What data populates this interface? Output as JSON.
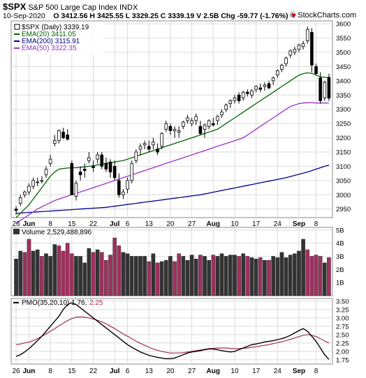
{
  "header": {
    "symbol": "$SPX",
    "name": "S&P 500 Large Cap Index",
    "exchange": "INDX",
    "date": "10-Sep-2020",
    "open": "O 3412.56",
    "high": "H 3425.55",
    "low": "L 3329.25",
    "close": "C 3339.19",
    "volume": "V 2.5B",
    "chg": "Chg -59.77 (-1.76%)",
    "chg_arrow": "▼",
    "brand": "© StockCharts.com"
  },
  "colors": {
    "up_candle": "#ffffff",
    "down_candle": "#000000",
    "ema20": "#006400",
    "ema200": "#00008b",
    "ema50": "#9932cc",
    "vol_up": "#333333",
    "vol_down": "#a0305e",
    "pmo": "#000000",
    "pmo_signal": "#a0304f",
    "chg_negative": "#cc0000"
  },
  "chart_data": [
    {
      "type": "candlestick",
      "legend": [
        {
          "key": "price",
          "label": "$SPX (Daily) 3339.19"
        },
        {
          "key": "ema20",
          "label": "EMA(20) 3411.05"
        },
        {
          "key": "ema200",
          "label": "EMA(200) 3115.91"
        },
        {
          "key": "ema50",
          "label": "EMA(50) 3322.35"
        }
      ],
      "legend_position": "top-left",
      "x_ticks": [
        "26",
        "Jun",
        "8",
        "15",
        "22",
        "Jul",
        "6",
        "13",
        "20",
        "27",
        "Aug",
        "10",
        "17",
        "24",
        "Sep",
        "8"
      ],
      "y_ticks": [
        2950,
        3000,
        3050,
        3100,
        3150,
        3200,
        3250,
        3300,
        3350,
        3400,
        3450,
        3500,
        3550,
        3600
      ],
      "ylim": [
        2920,
        3610
      ],
      "grid": true,
      "candles": [
        [
          2950,
          2960,
          2930,
          2945
        ],
        [
          2970,
          3000,
          2960,
          2990
        ],
        [
          3000,
          3015,
          2990,
          3010
        ],
        [
          3010,
          3040,
          3000,
          3030
        ],
        [
          3030,
          3060,
          3020,
          3050
        ],
        [
          3045,
          3060,
          3030,
          3045
        ],
        [
          3050,
          3065,
          3040,
          3050
        ],
        [
          3070,
          3100,
          3060,
          3090
        ],
        [
          3110,
          3140,
          3100,
          3125
        ],
        [
          3180,
          3210,
          3170,
          3190
        ],
        [
          3190,
          3230,
          3180,
          3225
        ],
        [
          3220,
          3235,
          3195,
          3200
        ],
        [
          3210,
          3230,
          3190,
          3195
        ],
        [
          3110,
          3120,
          3000,
          3000
        ],
        [
          2995,
          3050,
          2980,
          3040
        ],
        [
          3080,
          3100,
          3050,
          3070
        ],
        [
          3090,
          3110,
          3060,
          3085
        ],
        [
          3120,
          3150,
          3110,
          3130
        ],
        [
          3100,
          3120,
          3080,
          3095
        ],
        [
          3125,
          3150,
          3110,
          3140
        ],
        [
          3140,
          3150,
          3090,
          3100
        ],
        [
          3110,
          3130,
          3080,
          3090
        ],
        [
          3115,
          3125,
          3060,
          3080
        ],
        [
          3100,
          3120,
          3050,
          3060
        ],
        [
          3050,
          3075,
          2990,
          3000
        ],
        [
          3000,
          3020,
          2985,
          3010
        ],
        [
          3020,
          3060,
          3005,
          3050
        ],
        [
          3050,
          3120,
          3040,
          3110
        ],
        [
          3120,
          3160,
          3110,
          3150
        ],
        [
          3160,
          3180,
          3140,
          3170
        ],
        [
          3175,
          3190,
          3160,
          3180
        ],
        [
          3170,
          3190,
          3150,
          3160
        ],
        [
          3175,
          3200,
          3160,
          3185
        ],
        [
          3160,
          3180,
          3140,
          3150
        ],
        [
          3170,
          3220,
          3160,
          3215
        ],
        [
          3230,
          3260,
          3220,
          3250
        ],
        [
          3240,
          3250,
          3210,
          3225
        ],
        [
          3225,
          3240,
          3200,
          3230
        ],
        [
          3220,
          3240,
          3200,
          3225
        ],
        [
          3240,
          3260,
          3230,
          3255
        ],
        [
          3260,
          3280,
          3250,
          3270
        ],
        [
          3250,
          3270,
          3240,
          3260
        ],
        [
          3260,
          3285,
          3245,
          3275
        ],
        [
          3240,
          3260,
          3210,
          3215
        ],
        [
          3230,
          3250,
          3200,
          3245
        ],
        [
          3240,
          3265,
          3230,
          3260
        ],
        [
          3250,
          3270,
          3240,
          3245
        ],
        [
          3260,
          3280,
          3245,
          3275
        ],
        [
          3280,
          3300,
          3270,
          3290
        ],
        [
          3300,
          3320,
          3290,
          3315
        ],
        [
          3320,
          3335,
          3305,
          3330
        ],
        [
          3330,
          3350,
          3320,
          3340
        ],
        [
          3350,
          3360,
          3320,
          3330
        ],
        [
          3340,
          3365,
          3330,
          3360
        ],
        [
          3360,
          3370,
          3345,
          3355
        ],
        [
          3350,
          3370,
          3340,
          3365
        ],
        [
          3370,
          3385,
          3360,
          3380
        ],
        [
          3375,
          3390,
          3360,
          3370
        ],
        [
          3380,
          3395,
          3365,
          3385
        ],
        [
          3390,
          3400,
          3370,
          3375
        ],
        [
          3400,
          3415,
          3385,
          3410
        ],
        [
          3420,
          3440,
          3410,
          3435
        ],
        [
          3440,
          3460,
          3430,
          3455
        ],
        [
          3460,
          3485,
          3450,
          3480
        ],
        [
          3490,
          3510,
          3480,
          3505
        ],
        [
          3500,
          3520,
          3490,
          3510
        ],
        [
          3510,
          3530,
          3500,
          3525
        ],
        [
          3520,
          3540,
          3510,
          3530
        ],
        [
          3540,
          3590,
          3530,
          3580
        ],
        [
          3570,
          3585,
          3430,
          3455
        ],
        [
          3450,
          3460,
          3420,
          3425
        ],
        [
          3410,
          3430,
          3320,
          3330
        ],
        [
          3340,
          3400,
          3330,
          3395
        ],
        [
          3412,
          3425,
          3329,
          3339
        ]
      ],
      "ema20": [
        2920,
        2935,
        2950,
        2965,
        2985,
        3005,
        3025,
        3045,
        3065,
        3080,
        3090,
        3092,
        3094,
        3095,
        3095,
        3096,
        3098,
        3100,
        3102,
        3105,
        3108,
        3110,
        3113,
        3115,
        3118,
        3120,
        3125,
        3130,
        3135,
        3140,
        3145,
        3150,
        3155,
        3160,
        3165,
        3170,
        3175,
        3180,
        3185,
        3190,
        3195,
        3200,
        3205,
        3210,
        3215,
        3220,
        3225,
        3230,
        3240,
        3250,
        3260,
        3270,
        3280,
        3290,
        3300,
        3310,
        3320,
        3330,
        3340,
        3350,
        3360,
        3370,
        3380,
        3390,
        3400,
        3410,
        3420,
        3425,
        3428,
        3426,
        3420,
        3414,
        3412,
        3411
      ],
      "ema50": [
        2900,
        2910,
        2920,
        2930,
        2940,
        2950,
        2958,
        2965,
        2972,
        2980,
        2985,
        2990,
        2995,
        3000,
        3005,
        3010,
        3015,
        3020,
        3025,
        3030,
        3035,
        3040,
        3045,
        3050,
        3055,
        3060,
        3065,
        3070,
        3075,
        3080,
        3085,
        3090,
        3095,
        3100,
        3105,
        3110,
        3115,
        3120,
        3125,
        3130,
        3135,
        3140,
        3145,
        3150,
        3155,
        3160,
        3165,
        3170,
        3175,
        3180,
        3185,
        3190,
        3195,
        3200,
        3210,
        3220,
        3230,
        3240,
        3250,
        3260,
        3270,
        3280,
        3290,
        3300,
        3310,
        3315,
        3320,
        3322,
        3323,
        3323,
        3322,
        3322,
        3322,
        3322
      ],
      "ema200": [
        2935,
        2936,
        2937,
        2938,
        2939,
        2940,
        2941,
        2942,
        2943,
        2944,
        2945,
        2946,
        2947,
        2948,
        2949,
        2950,
        2951,
        2952,
        2953,
        2954,
        2955,
        2956,
        2958,
        2960,
        2962,
        2964,
        2966,
        2968,
        2970,
        2972,
        2974,
        2976,
        2978,
        2980,
        2982,
        2984,
        2986,
        2988,
        2990,
        2992,
        2994,
        2996,
        2998,
        3000,
        3003,
        3006,
        3009,
        3012,
        3015,
        3018,
        3021,
        3024,
        3027,
        3030,
        3033,
        3036,
        3039,
        3042,
        3045,
        3048,
        3051,
        3054,
        3057,
        3060,
        3064,
        3068,
        3072,
        3076,
        3080,
        3085,
        3090,
        3095,
        3100,
        3104
      ]
    },
    {
      "type": "bar",
      "legend": [
        {
          "label": "Volume 2,529,488,896"
        }
      ],
      "y_ticks": [
        "1B",
        "2B",
        "3B",
        "4B",
        "5B"
      ],
      "ylim": [
        0,
        5.2
      ],
      "grid": true,
      "values": [
        2.8,
        3.4,
        3.3,
        4.3,
        3.4,
        3.5,
        3.0,
        3.2,
        3.0,
        3.9,
        3.8,
        3.4,
        4.0,
        3.2,
        3.0,
        3.0,
        2.5,
        3.6,
        3.3,
        3.5,
        3.3,
        2.7,
        3.1,
        4.4,
        3.8,
        3.3,
        3.2,
        3.0,
        3.0,
        3.0,
        3.0,
        2.6,
        3.2,
        2.5,
        2.6,
        2.7,
        3.0,
        2.6,
        3.2,
        3.0,
        2.7,
        3.1,
        2.8,
        3.1,
        3.0,
        2.7,
        3.1,
        3.0,
        3.2,
        3.0,
        3.1,
        3.1,
        3.0,
        3.2,
        3.0,
        2.9,
        2.8,
        2.9,
        2.7,
        2.7,
        3.0,
        2.9,
        3.3,
        2.9,
        3.1,
        3.2,
        3.4,
        4.3,
        3.5,
        3.0,
        3.1,
        3.0,
        2.5,
        2.9
      ],
      "down": [
        false,
        false,
        true,
        true,
        false,
        false,
        true,
        false,
        false,
        false,
        true,
        true,
        true,
        true,
        false,
        false,
        false,
        false,
        true,
        false,
        true,
        true,
        true,
        true,
        true,
        false,
        false,
        false,
        false,
        false,
        false,
        true,
        false,
        true,
        false,
        false,
        false,
        true,
        true,
        false,
        false,
        false,
        false,
        true,
        false,
        false,
        true,
        false,
        false,
        false,
        false,
        false,
        true,
        false,
        true,
        false,
        false,
        true,
        false,
        true,
        false,
        false,
        false,
        false,
        false,
        false,
        false,
        false,
        true,
        true,
        true,
        true,
        false,
        true
      ]
    },
    {
      "type": "line",
      "legend": [
        {
          "key": "pmo",
          "label": "PMO(35,20,10) 1.76,"
        },
        {
          "key": "signal",
          "label": "2.25"
        }
      ],
      "x_ticks": [
        "26",
        "Jun",
        "8",
        "15",
        "22",
        "Jul",
        "6",
        "13",
        "20",
        "27",
        "Aug",
        "10",
        "17",
        "24",
        "Sep",
        "8"
      ],
      "y_ticks": [
        1.75,
        2.0,
        2.25,
        2.5,
        2.75,
        3.0,
        3.25,
        3.5
      ],
      "ylim": [
        1.62,
        3.58
      ],
      "grid": true,
      "series": [
        {
          "key": "pmo",
          "values": [
            1.85,
            1.9,
            1.98,
            2.08,
            2.2,
            2.32,
            2.45,
            2.6,
            2.75,
            2.9,
            3.05,
            3.25,
            3.4,
            3.45,
            3.4,
            3.3,
            3.2,
            3.1,
            3.0,
            2.9,
            2.8,
            2.7,
            2.6,
            2.5,
            2.4,
            2.3,
            2.2,
            2.12,
            2.05,
            1.98,
            1.93,
            1.88,
            1.85,
            1.82,
            1.8,
            1.78,
            1.78,
            1.8,
            1.85,
            1.9,
            1.95,
            1.98,
            2.0,
            2.02,
            2.05,
            2.07,
            2.07,
            2.05,
            2.02,
            2.0,
            1.98,
            2.0,
            2.05,
            2.1,
            2.15,
            2.2,
            2.22,
            2.25,
            2.28,
            2.3,
            2.32,
            2.35,
            2.38,
            2.42,
            2.48,
            2.55,
            2.62,
            2.68,
            2.6,
            2.45,
            2.3,
            2.1,
            1.9,
            1.76
          ]
        },
        {
          "key": "signal",
          "values": [
            2.2,
            2.22,
            2.25,
            2.28,
            2.32,
            2.38,
            2.45,
            2.52,
            2.6,
            2.68,
            2.76,
            2.84,
            2.92,
            2.98,
            3.02,
            3.03,
            3.02,
            3.0,
            2.97,
            2.93,
            2.88,
            2.82,
            2.75,
            2.68,
            2.6,
            2.52,
            2.45,
            2.38,
            2.3,
            2.24,
            2.18,
            2.12,
            2.07,
            2.03,
            2.0,
            1.97,
            1.95,
            1.95,
            1.95,
            1.96,
            1.98,
            2.0,
            2.02,
            2.04,
            2.06,
            2.08,
            2.09,
            2.1,
            2.1,
            2.1,
            2.09,
            2.08,
            2.08,
            2.09,
            2.1,
            2.12,
            2.14,
            2.16,
            2.18,
            2.2,
            2.23,
            2.26,
            2.29,
            2.32,
            2.36,
            2.4,
            2.44,
            2.48,
            2.5,
            2.48,
            2.44,
            2.38,
            2.31,
            2.25
          ]
        }
      ]
    }
  ]
}
